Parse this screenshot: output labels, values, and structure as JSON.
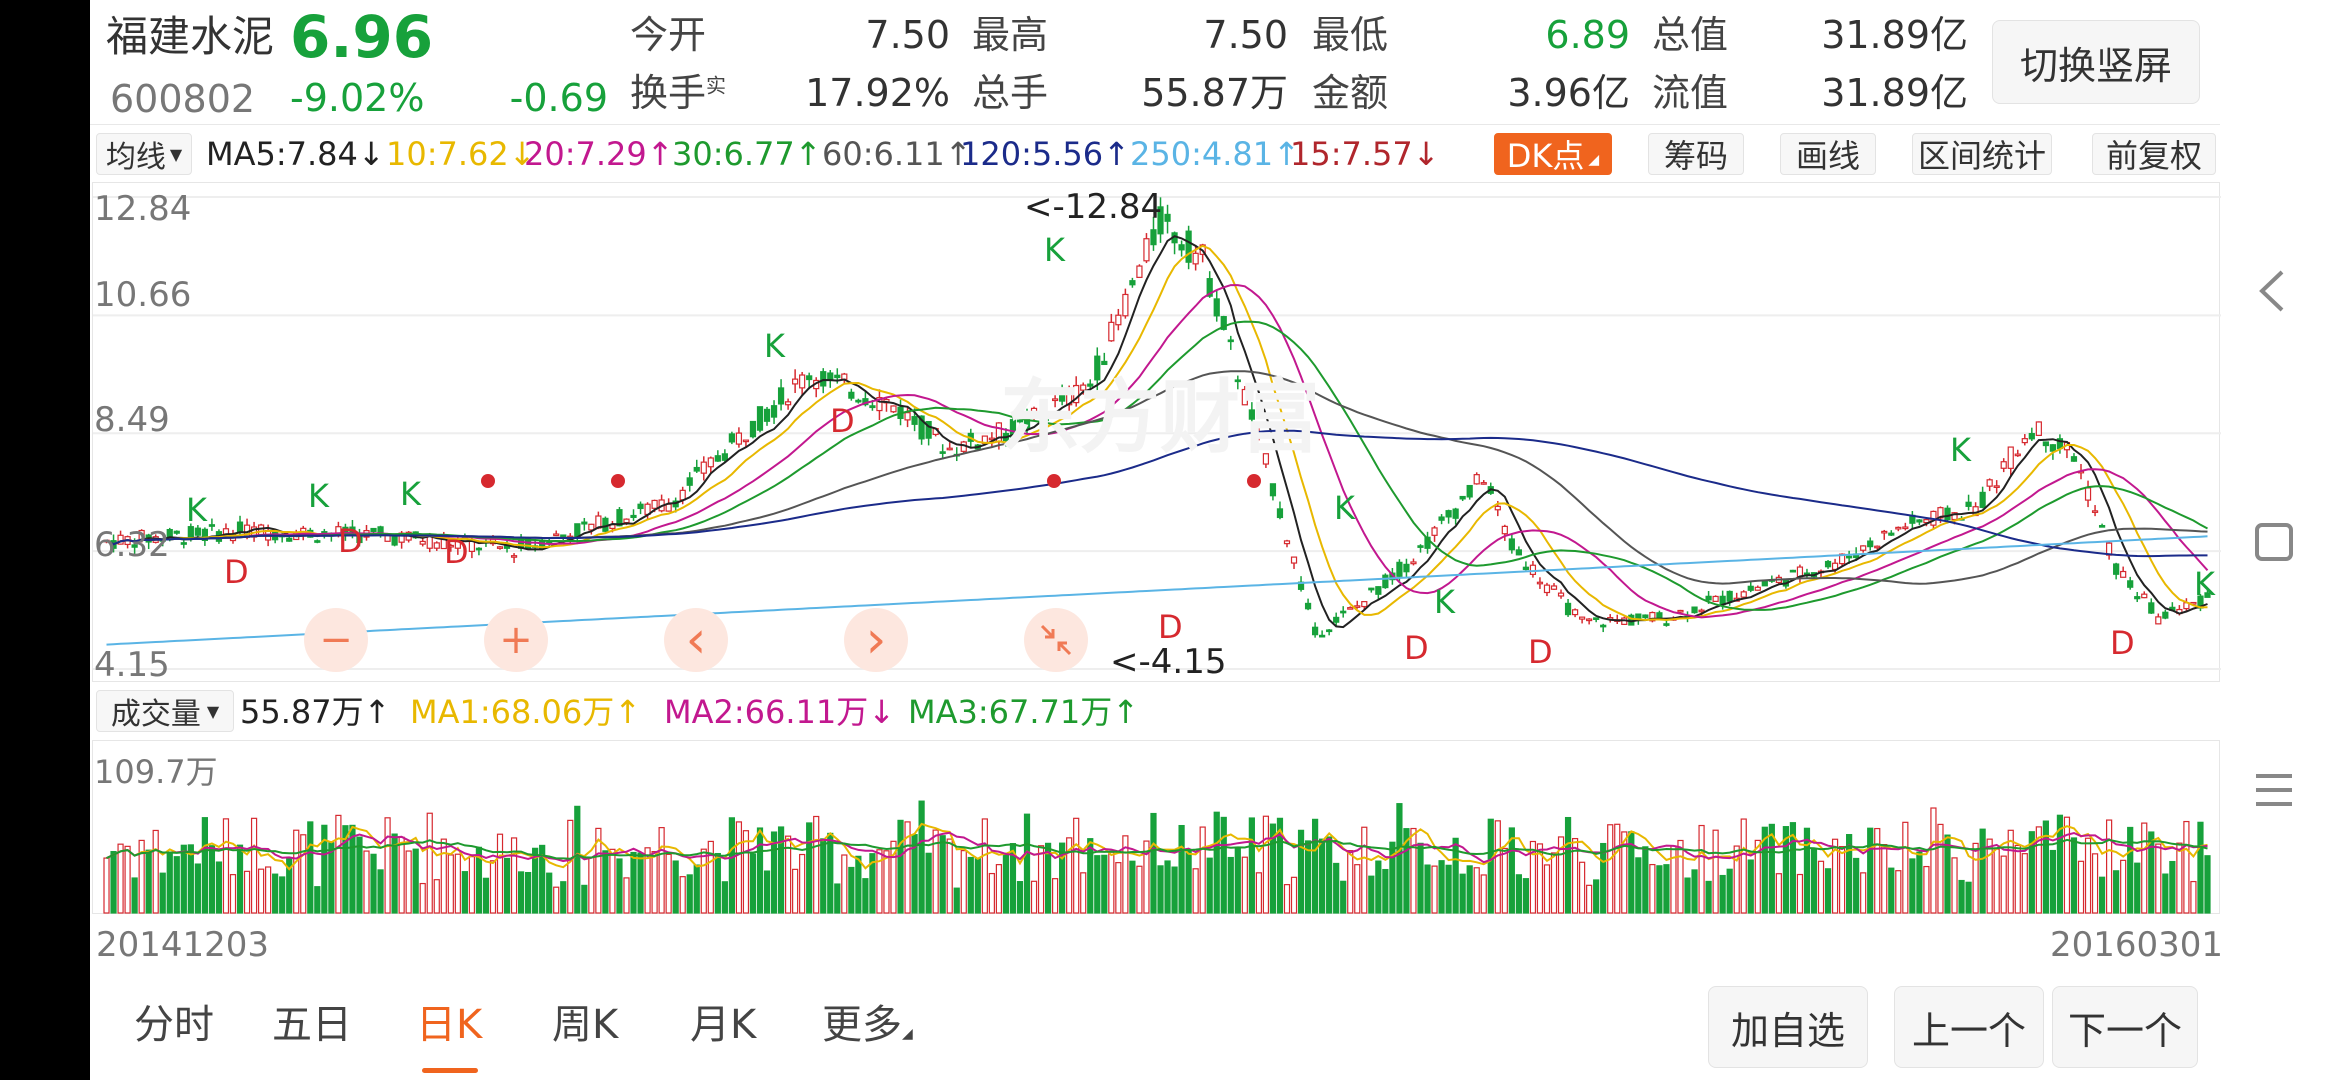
{
  "stock": {
    "name": "福建水泥",
    "price": "6.96",
    "code": "600802",
    "change_pct": "-9.02%",
    "change": "-0.69",
    "switch_button": "切换竖屏"
  },
  "quote": {
    "open_label": "今开",
    "open": "7.50",
    "high_label": "最高",
    "high": "7.50",
    "low_label": "最低",
    "low": "6.89",
    "mcap_label": "总值",
    "mcap": "31.89亿",
    "turnover_label": "换手",
    "turnover_sup": "实",
    "turnover": "17.92%",
    "vol_label": "总手",
    "vol": "55.87万",
    "amount_label": "金额",
    "amount": "3.96亿",
    "float_label": "流值",
    "float": "31.89亿"
  },
  "ma_bar": {
    "selector": "均线",
    "ma5": "MA5:7.84",
    "ma10": "10:7.62",
    "ma20": "20:7.29",
    "ma30": "30:6.77",
    "ma60": "60:6.11",
    "ma120": "120:5.56",
    "ma250": "250:4.81",
    "ma15": "15:7.57",
    "down_arrow": "↓",
    "up_arrow": "↑",
    "dk_button": "DK点",
    "chip_button": "筹码",
    "draw_button": "画线",
    "range_button": "区间统计",
    "adjust_button": "前复权"
  },
  "price_axis": [
    "12.84",
    "10.66",
    "8.49",
    "6.32",
    "4.15"
  ],
  "annotations": {
    "high_mark": "<-12.84",
    "low_mark": "<-4.15",
    "k": "K",
    "d": "D",
    "watermark": "东方财富"
  },
  "volume_bar": {
    "selector": "成交量",
    "vol": "55.87万",
    "ma1": "MA1:68.06万",
    "ma2": "MA2:66.11万",
    "ma3": "MA3:67.71万",
    "max_label": "109.7万"
  },
  "dates": {
    "start": "20141203",
    "end": "20160301"
  },
  "chart_controls": {
    "minus": "−",
    "plus": "+",
    "prev": "‹",
    "next": "›"
  },
  "tabs": {
    "fenshi": "分时",
    "wuri": "五日",
    "rik": "日K",
    "zhouk": "周K",
    "yuek": "月K",
    "more": "更多"
  },
  "actions": {
    "add": "加自选",
    "prev": "上一个",
    "next": "下一个"
  },
  "colors": {
    "up": "#d6292f",
    "down": "#17a13b",
    "accent": "#f0641e",
    "ma5": "#222222",
    "ma10": "#e8b800",
    "ma20": "#c2188f",
    "ma30": "#1e9a2e",
    "ma60": "#555555",
    "ma120": "#1b2b8a",
    "ma250": "#5ab4e5",
    "ma15": "#b0262c"
  },
  "icons": [
    "chevron-left-icon",
    "square-icon",
    "menu-icon",
    "zoom-out-icon",
    "zoom-in-icon",
    "shrink-icon"
  ]
}
